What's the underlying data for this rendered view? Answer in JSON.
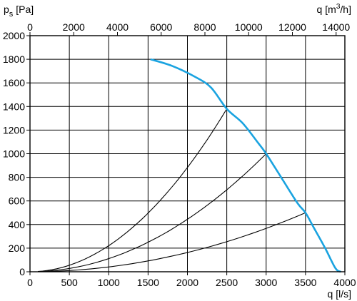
{
  "chart_data": {
    "type": "line",
    "title": "",
    "ylabel": {
      "symbol": "p",
      "sub": "s",
      "unit": "[Pa]"
    },
    "xlabel_bottom": "q [l/s]",
    "xlabel_top": {
      "symbol": "q",
      "unit_pre": "[m",
      "sup": "3",
      "unit_post": "/h]"
    },
    "xlim": [
      0,
      4000
    ],
    "ylim": [
      0,
      2000
    ],
    "xticks_bottom": [
      0,
      500,
      1000,
      1500,
      2000,
      2500,
      3000,
      3500,
      4000
    ],
    "xticks_top": [
      0,
      2000,
      4000,
      6000,
      8000,
      10000,
      12000,
      14000
    ],
    "top_axis_factor": 3.6,
    "yticks": [
      0,
      200,
      400,
      600,
      800,
      1000,
      1200,
      1400,
      1600,
      1800,
      2000
    ],
    "grid": true,
    "colors": {
      "fan_curve": "#1aa3e0",
      "system_curves": "#000000"
    },
    "series": [
      {
        "kind": "fan",
        "x": [
          1530,
          1800,
          2100,
          2300,
          2500,
          2700,
          2900,
          3000,
          3200,
          3400,
          3500,
          3600,
          3750,
          3880,
          3950
        ],
        "y": [
          1800,
          1745,
          1650,
          1560,
          1380,
          1260,
          1090,
          1000,
          790,
          580,
          500,
          380,
          200,
          30,
          0
        ]
      },
      {
        "kind": "system",
        "x0": 100,
        "end": [
          2500,
          1380
        ]
      },
      {
        "kind": "system",
        "x0": 100,
        "end": [
          3000,
          1000
        ]
      },
      {
        "kind": "system",
        "x0": 100,
        "end": [
          3500,
          500
        ]
      }
    ]
  }
}
